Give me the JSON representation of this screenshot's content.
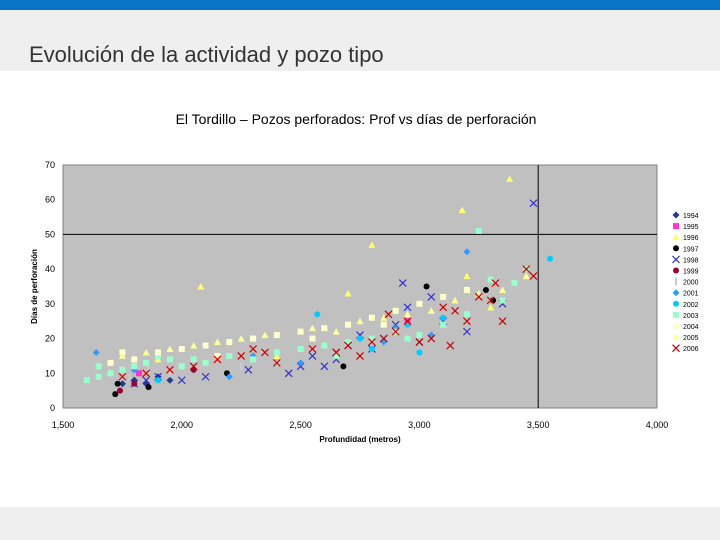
{
  "page": {
    "title": "Evolución de la actividad y pozo tipo"
  },
  "colors": {
    "accent_bar": "#0a74c4",
    "plot_background": "#c0c0c0"
  },
  "chart_data": {
    "type": "scatter",
    "title": "El Tordillo – Pozos perforados: Prof vs días de perforación",
    "xlabel": "Profundidad (metros)",
    "ylabel": "Días de perforación",
    "xlim": [
      1500,
      4000
    ],
    "ylim": [
      0,
      70
    ],
    "x_ticks": [
      1500,
      2000,
      2500,
      3000,
      3500,
      4000
    ],
    "x_tick_labels": [
      "1,500",
      "2,000",
      "2,500",
      "3,000",
      "3,500",
      "4,000"
    ],
    "y_ticks": [
      0,
      10,
      20,
      30,
      40,
      50,
      60,
      70
    ],
    "y_tick_labels": [
      "0",
      "10",
      "20",
      "30",
      "40",
      "50",
      "60",
      "70"
    ],
    "grid": false,
    "reference_lines": {
      "x": 3500,
      "y": 50
    },
    "legend_position": "right",
    "series": [
      {
        "name": "1994",
        "color": "#1f3a93",
        "marker": "diamond",
        "points": [
          [
            1750,
            7
          ],
          [
            1800,
            8
          ],
          [
            1850,
            7
          ],
          [
            1900,
            9
          ],
          [
            1950,
            8
          ]
        ]
      },
      {
        "name": "1995",
        "color": "#ff33cc",
        "marker": "square",
        "points": [
          [
            1820,
            10
          ],
          [
            2950,
            25
          ]
        ]
      },
      {
        "name": "1996",
        "color": "#ffff66",
        "marker": "triangle",
        "points": [
          [
            2080,
            35
          ],
          [
            2800,
            47
          ],
          [
            3180,
            57
          ],
          [
            3380,
            66
          ],
          [
            2700,
            33
          ],
          [
            3200,
            38
          ],
          [
            1900,
            14
          ],
          [
            2400,
            15
          ],
          [
            2600,
            18
          ],
          [
            2900,
            22
          ],
          [
            3100,
            24
          ],
          [
            3300,
            29
          ]
        ]
      },
      {
        "name": "1997",
        "color": "#000000",
        "marker": "circle",
        "points": [
          [
            1720,
            4
          ],
          [
            1730,
            7
          ],
          [
            1860,
            6
          ],
          [
            2190,
            10
          ],
          [
            2680,
            12
          ],
          [
            3030,
            35
          ],
          [
            3280,
            34
          ],
          [
            3310,
            31
          ]
        ]
      },
      {
        "name": "1998",
        "color": "#3333cc",
        "marker": "x",
        "points": [
          [
            1800,
            7
          ],
          [
            1850,
            8
          ],
          [
            1900,
            9
          ],
          [
            2000,
            8
          ],
          [
            2100,
            9
          ],
          [
            2280,
            11
          ],
          [
            2450,
            10
          ],
          [
            2500,
            12
          ],
          [
            2550,
            15
          ],
          [
            2600,
            12
          ],
          [
            2650,
            14
          ],
          [
            2800,
            17
          ],
          [
            2850,
            20
          ],
          [
            2900,
            24
          ],
          [
            2950,
            29
          ],
          [
            3000,
            19
          ],
          [
            3100,
            25
          ],
          [
            3200,
            22
          ],
          [
            2930,
            36
          ],
          [
            3050,
            32
          ],
          [
            3480,
            59
          ],
          [
            3350,
            30
          ],
          [
            2700,
            18
          ],
          [
            2750,
            21
          ],
          [
            2650,
            16
          ]
        ]
      },
      {
        "name": "1999",
        "color": "#990033",
        "marker": "circle",
        "points": [
          [
            1740,
            5
          ],
          [
            1800,
            7
          ],
          [
            2050,
            11
          ]
        ]
      },
      {
        "name": "2000",
        "color": "#cccccc",
        "marker": "bar",
        "points": [
          [
            1700,
            10
          ],
          [
            1780,
            9
          ],
          [
            1860,
            11
          ],
          [
            1950,
            10
          ],
          [
            2250,
            12
          ]
        ]
      },
      {
        "name": "2001",
        "color": "#3399ff",
        "marker": "diamond",
        "points": [
          [
            1800,
            11
          ],
          [
            2200,
            9
          ],
          [
            2500,
            13
          ],
          [
            2850,
            19
          ],
          [
            2900,
            23
          ],
          [
            3050,
            21
          ],
          [
            3200,
            45
          ],
          [
            1640,
            16
          ],
          [
            2300,
            15
          ]
        ]
      },
      {
        "name": "2002",
        "color": "#00ccff",
        "marker": "circle",
        "points": [
          [
            2570,
            27
          ],
          [
            2950,
            24
          ],
          [
            3000,
            16
          ],
          [
            3550,
            43
          ],
          [
            2800,
            17
          ],
          [
            3100,
            26
          ],
          [
            1900,
            8
          ],
          [
            2750,
            20
          ]
        ]
      },
      {
        "name": "2003",
        "color": "#99ffcc",
        "marker": "square",
        "points": [
          [
            1600,
            8
          ],
          [
            1650,
            9
          ],
          [
            1700,
            10
          ],
          [
            1750,
            11
          ],
          [
            1800,
            12
          ],
          [
            1850,
            13
          ],
          [
            1900,
            15
          ],
          [
            1950,
            14
          ],
          [
            2000,
            12
          ],
          [
            2100,
            13
          ],
          [
            2200,
            15
          ],
          [
            2300,
            14
          ],
          [
            2400,
            16
          ],
          [
            2500,
            17
          ],
          [
            2600,
            18
          ],
          [
            2700,
            19
          ],
          [
            2800,
            20
          ],
          [
            2900,
            22
          ],
          [
            3000,
            21
          ],
          [
            3100,
            24
          ],
          [
            3200,
            27
          ],
          [
            3250,
            51
          ],
          [
            3300,
            37
          ],
          [
            3350,
            31
          ],
          [
            3400,
            36
          ],
          [
            3450,
            40
          ],
          [
            1650,
            12
          ],
          [
            2050,
            14
          ],
          [
            2650,
            15
          ],
          [
            2950,
            20
          ]
        ]
      },
      {
        "name": "2004",
        "color": "#ffffcc",
        "marker": "square",
        "points": [
          [
            1700,
            13
          ],
          [
            1800,
            14
          ],
          [
            1900,
            16
          ],
          [
            2000,
            17
          ],
          [
            2100,
            18
          ],
          [
            2200,
            19
          ],
          [
            2300,
            20
          ],
          [
            2400,
            21
          ],
          [
            2500,
            22
          ],
          [
            2600,
            23
          ],
          [
            2700,
            24
          ],
          [
            2800,
            26
          ],
          [
            2900,
            28
          ],
          [
            3000,
            30
          ],
          [
            3100,
            32
          ],
          [
            3200,
            34
          ],
          [
            1750,
            16
          ],
          [
            2150,
            15
          ],
          [
            2550,
            20
          ],
          [
            2850,
            24
          ]
        ]
      },
      {
        "name": "2005",
        "color": "#ffff99",
        "marker": "triangle",
        "points": [
          [
            1750,
            15
          ],
          [
            1950,
            17
          ],
          [
            2150,
            19
          ],
          [
            2350,
            21
          ],
          [
            2550,
            23
          ],
          [
            2750,
            25
          ],
          [
            2950,
            27
          ],
          [
            3150,
            31
          ],
          [
            3350,
            34
          ],
          [
            3450,
            38
          ],
          [
            1850,
            16
          ],
          [
            2050,
            18
          ],
          [
            2250,
            20
          ],
          [
            2650,
            22
          ],
          [
            2850,
            26
          ],
          [
            3050,
            28
          ],
          [
            3250,
            33
          ]
        ]
      },
      {
        "name": "2006",
        "color": "#cc0000",
        "marker": "x",
        "points": [
          [
            1750,
            9
          ],
          [
            1850,
            10
          ],
          [
            2050,
            12
          ],
          [
            2150,
            14
          ],
          [
            2250,
            15
          ],
          [
            2300,
            17
          ],
          [
            2400,
            13
          ],
          [
            2550,
            17
          ],
          [
            2650,
            16
          ],
          [
            2700,
            18
          ],
          [
            2750,
            15
          ],
          [
            2800,
            19
          ],
          [
            2850,
            20
          ],
          [
            2900,
            22
          ],
          [
            2950,
            25
          ],
          [
            3000,
            19
          ],
          [
            3050,
            20
          ],
          [
            3100,
            29
          ],
          [
            3150,
            28
          ],
          [
            3200,
            25
          ],
          [
            3250,
            32
          ],
          [
            3300,
            31
          ],
          [
            3320,
            36
          ],
          [
            3350,
            25
          ],
          [
            3450,
            40
          ],
          [
            3480,
            38
          ],
          [
            3130,
            18
          ],
          [
            2870,
            27
          ],
          [
            1950,
            11
          ],
          [
            2350,
            16
          ]
        ]
      }
    ]
  }
}
